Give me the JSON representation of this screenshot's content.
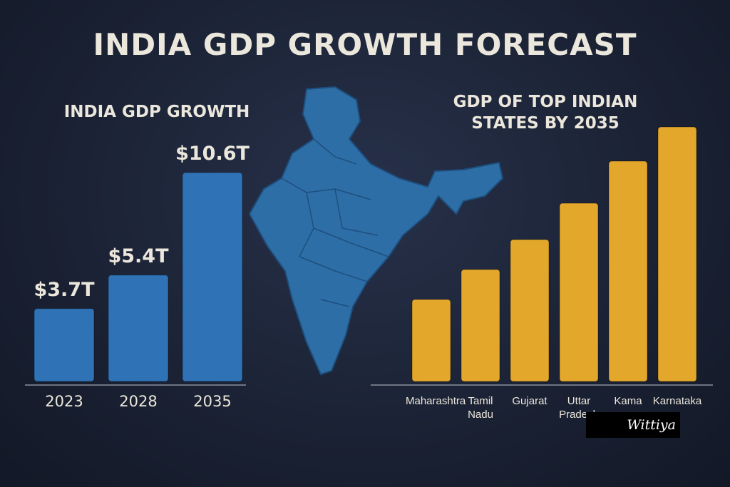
{
  "title": "INDIA GDP GROWTH FORECAST",
  "watermark": "Wittiya",
  "chart_data": [
    {
      "type": "bar",
      "title": "INDIA GDP GROWTH",
      "categories": [
        "2023",
        "2028",
        "2035"
      ],
      "values": [
        3.7,
        5.4,
        10.6
      ],
      "value_labels": [
        "$3.7T",
        "$5.4T",
        "$10.6T"
      ],
      "color": "#2f72b5"
    },
    {
      "type": "bar",
      "title": "GDP OF TOP INDIAN STATES BY 2035",
      "categories": [
        "Maharashtra",
        "Tamil Nadu",
        "Gujarat",
        "Uttar Pradesh",
        "Kama",
        "Karnataka"
      ],
      "values": [
        115,
        157,
        199,
        250,
        309,
        357
      ],
      "color": "#e3a82b"
    }
  ]
}
